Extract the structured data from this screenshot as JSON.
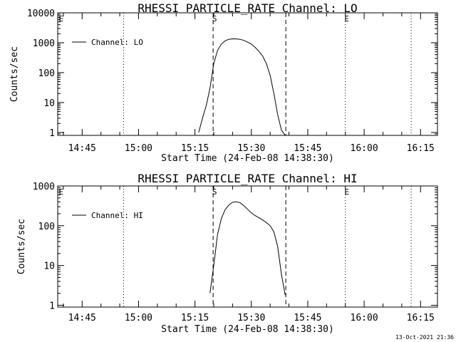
{
  "footer": {
    "timestamp": "13-Oct-2021 21:36"
  },
  "chart_data": [
    {
      "type": "line",
      "title": "RHESSI PARTICLE_RATE Channel: LO",
      "xlabel": "Start Time (24-Feb-08 14:38:30)",
      "ylabel": "Counts/sec",
      "yscale": "log",
      "ylim": [
        0.8,
        10000
      ],
      "xlim": [
        "14:38:30",
        "16:19:30"
      ],
      "x_ticks": [
        "14:45",
        "15:00",
        "15:15",
        "15:30",
        "15:45",
        "16:00",
        "16:15"
      ],
      "y_ticks": [
        "1",
        "10",
        "100",
        "1000",
        "10000"
      ],
      "legend": {
        "position": "top-left",
        "entries": [
          "Channel: LO"
        ]
      },
      "dotted_lines": [
        "14:56:00",
        "15:55:00",
        "16:12:30"
      ],
      "dashed_lines": [
        "15:19:50",
        "15:39:10"
      ],
      "markers": [
        {
          "label": "E",
          "x": "14:39:00"
        },
        {
          "label": "S",
          "x": "15:19:50"
        },
        {
          "label": "E",
          "x": "15:55:00"
        }
      ],
      "series": [
        {
          "name": "Channel: LO",
          "x": [
            "15:16:00",
            "15:17:00",
            "15:18:00",
            "15:19:00",
            "15:20:00",
            "15:21:00",
            "15:22:00",
            "15:23:00",
            "15:24:00",
            "15:25:00",
            "15:26:00",
            "15:27:00",
            "15:28:00",
            "15:29:00",
            "15:30:00",
            "15:31:00",
            "15:32:00",
            "15:33:00",
            "15:34:00",
            "15:35:00",
            "15:36:00",
            "15:37:00",
            "15:38:00",
            "15:39:00"
          ],
          "values": [
            1,
            3,
            8,
            30,
            200,
            550,
            900,
            1150,
            1300,
            1350,
            1340,
            1300,
            1200,
            1050,
            900,
            700,
            520,
            360,
            200,
            80,
            20,
            4,
            1.2,
            0.8
          ]
        }
      ]
    },
    {
      "type": "line",
      "title": "RHESSI PARTICLE_RATE Channel: HI",
      "xlabel": "Start Time (24-Feb-08 14:38:30)",
      "ylabel": "Counts/sec",
      "yscale": "log",
      "ylim": [
        0.9,
        1000
      ],
      "xlim": [
        "14:38:30",
        "16:19:30"
      ],
      "x_ticks": [
        "14:45",
        "15:00",
        "15:15",
        "15:30",
        "15:45",
        "16:00",
        "16:15"
      ],
      "y_ticks": [
        "1",
        "10",
        "100",
        "1000"
      ],
      "legend": {
        "position": "top-left",
        "entries": [
          "Channel: HI"
        ]
      },
      "dotted_lines": [
        "14:56:00",
        "15:55:00",
        "16:12:30"
      ],
      "dashed_lines": [
        "15:19:50",
        "15:39:10"
      ],
      "markers": [
        {
          "label": "E",
          "x": "14:39:00"
        },
        {
          "label": "S",
          "x": "15:19:50"
        },
        {
          "label": "E",
          "x": "15:55:00"
        }
      ],
      "series": [
        {
          "name": "Channel: HI",
          "x": [
            "15:19:00",
            "15:20:00",
            "15:21:00",
            "15:22:00",
            "15:23:00",
            "15:24:00",
            "15:25:00",
            "15:26:00",
            "15:27:00",
            "15:28:00",
            "15:29:00",
            "15:30:00",
            "15:31:00",
            "15:32:00",
            "15:33:00",
            "15:34:00",
            "15:35:00",
            "15:36:00",
            "15:37:00",
            "15:38:00",
            "15:39:00"
          ],
          "values": [
            2,
            10,
            60,
            150,
            250,
            330,
            390,
            400,
            380,
            320,
            260,
            210,
            180,
            160,
            140,
            120,
            100,
            70,
            30,
            6,
            1.8
          ]
        }
      ]
    }
  ]
}
